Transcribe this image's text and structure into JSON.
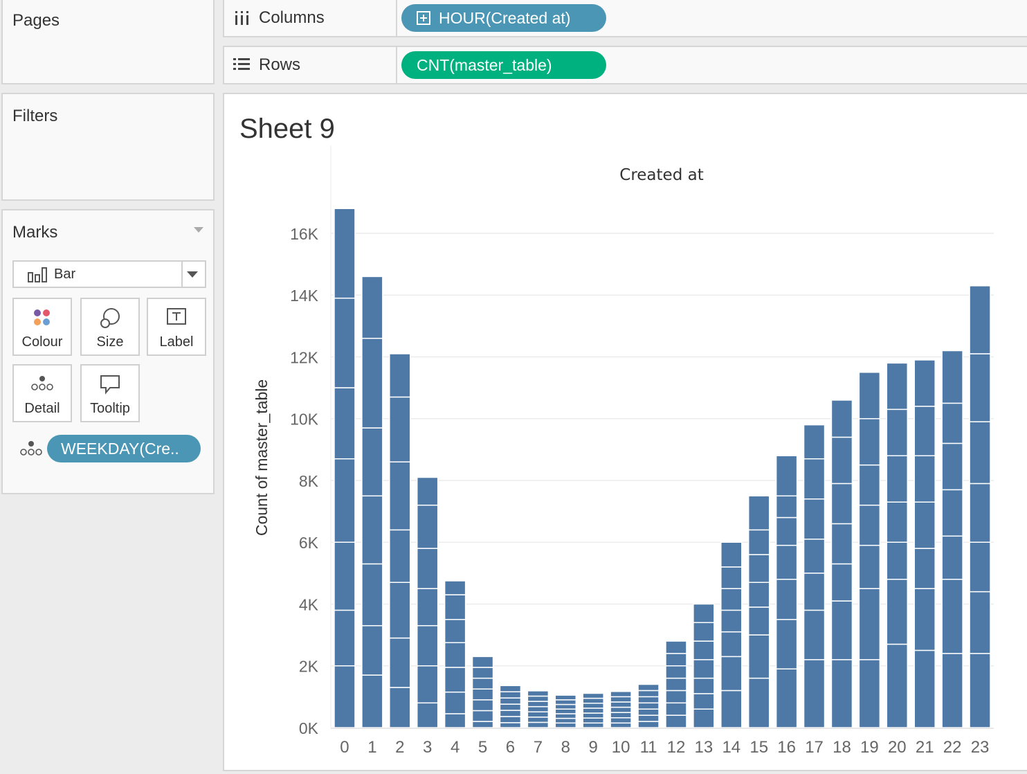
{
  "cards": {
    "pages": "Pages",
    "filters": "Filters",
    "marks": "Marks"
  },
  "marks": {
    "type": "Bar",
    "buttons": {
      "colour": "Colour",
      "size": "Size",
      "label": "Label",
      "detail": "Detail",
      "tooltip": "Tooltip"
    },
    "detail_pill": "WEEKDAY(Cre.."
  },
  "shelves": {
    "columns_label": "Columns",
    "columns_pill": "HOUR(Created at)",
    "rows_label": "Rows",
    "rows_pill": "CNT(master_table)"
  },
  "colors": {
    "bar": "#4e79a7",
    "pill_blue": "#4a96b4",
    "pill_green": "#00b180"
  },
  "sheet": {
    "title": "Sheet 9"
  },
  "chart_data": {
    "type": "bar",
    "title": "Created at",
    "xlabel": "",
    "ylabel": "Count of master_table",
    "ylim": [
      0,
      17500
    ],
    "yticks": [
      0,
      2000,
      4000,
      6000,
      8000,
      10000,
      12000,
      14000,
      16000
    ],
    "ytick_labels": [
      "0K",
      "2K",
      "4K",
      "6K",
      "8K",
      "10K",
      "12K",
      "14K",
      "16K"
    ],
    "grid": true,
    "stacked": true,
    "categories": [
      "0",
      "1",
      "2",
      "3",
      "4",
      "5",
      "6",
      "7",
      "8",
      "9",
      "10",
      "11",
      "12",
      "13",
      "14",
      "15",
      "16",
      "17",
      "18",
      "19",
      "20",
      "21",
      "22",
      "23"
    ],
    "segments": [
      [
        2000,
        1800,
        2200,
        2700,
        2300,
        2900,
        2900
      ],
      [
        1700,
        1600,
        2000,
        2200,
        2200,
        2900,
        2000
      ],
      [
        1300,
        1600,
        1800,
        1700,
        2200,
        2100,
        1400
      ],
      [
        800,
        1200,
        1300,
        1200,
        1300,
        1400,
        900
      ],
      [
        450,
        700,
        800,
        800,
        750,
        800,
        450
      ],
      [
        200,
        350,
        350,
        350,
        350,
        350,
        350
      ],
      [
        160,
        200,
        200,
        200,
        200,
        200,
        200
      ],
      [
        170,
        170,
        170,
        170,
        170,
        170,
        170
      ],
      [
        150,
        150,
        150,
        150,
        150,
        150,
        150
      ],
      [
        150,
        160,
        160,
        160,
        160,
        160,
        160
      ],
      [
        150,
        170,
        170,
        170,
        170,
        170,
        170
      ],
      [
        200,
        200,
        200,
        200,
        200,
        200,
        200
      ],
      [
        400,
        400,
        400,
        400,
        400,
        400,
        400
      ],
      [
        600,
        500,
        500,
        600,
        600,
        600,
        600
      ],
      [
        1200,
        1100,
        800,
        700,
        700,
        700,
        800
      ],
      [
        1600,
        1400,
        900,
        800,
        900,
        800,
        1100
      ],
      [
        1900,
        1600,
        1300,
        1100,
        900,
        700,
        1300
      ],
      [
        2200,
        1600,
        1200,
        1100,
        1300,
        1300,
        1100
      ],
      [
        2200,
        1900,
        1200,
        1300,
        1300,
        1500,
        1200
      ],
      [
        2200,
        2300,
        1400,
        1300,
        1300,
        1500,
        1500
      ],
      [
        2700,
        2100,
        1200,
        1300,
        1500,
        1500,
        1500
      ],
      [
        2500,
        2000,
        1300,
        1500,
        1500,
        1600,
        1500
      ],
      [
        2400,
        2400,
        1400,
        1500,
        1500,
        1300,
        1700
      ],
      [
        2400,
        2000,
        1600,
        1900,
        2000,
        2200,
        2200
      ]
    ]
  }
}
